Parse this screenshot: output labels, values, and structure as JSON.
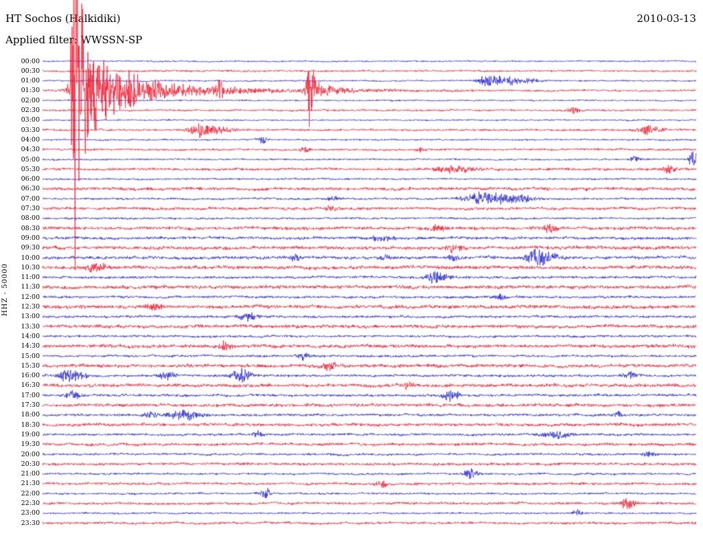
{
  "header": {
    "station_title": "HT Sochos (Halkidiki)",
    "date": "2010-03-13",
    "filter_label": "Applied filter: WWSSN-SP"
  },
  "y_axis_label": "HHZ - 50000",
  "colors": {
    "red": "#ed1b2f",
    "blue": "#2323cf",
    "background": "#ffffff",
    "text": "#000000"
  },
  "chart_data": {
    "type": "line",
    "subtype": "helicorder-seismogram",
    "station": "HT Sochos (Halkidiki)",
    "channel_gain": "HHZ - 50000",
    "date": "2010-03-13",
    "filter": "WWSSN-SP",
    "row_interval_minutes": 30,
    "rows_start": "00:00",
    "rows_end": "23:30",
    "notable_events": [
      {
        "trace": "01:30",
        "approx_time": "01:31",
        "description": "large local earthquake; amplitude saturates full plot height leaving a vertical red stripe across all traces"
      },
      {
        "trace": "01:30",
        "approx_time": "01:42",
        "description": "second large spike (aftershock)"
      },
      {
        "trace": "01:00",
        "approx_time": "01:20",
        "description": "moderate blue burst"
      },
      {
        "trace": "05:00",
        "approx_time": "05:29",
        "description": "burst clipped at right edge"
      }
    ],
    "rows": [
      {
        "time": "00:00",
        "color": "blue",
        "noise": 1.1,
        "events": []
      },
      {
        "time": "00:30",
        "color": "red",
        "noise": 1.4,
        "events": []
      },
      {
        "time": "01:00",
        "color": "blue",
        "noise": 1.1,
        "events": [
          {
            "p": 0.686,
            "a": 8,
            "w": 14
          },
          {
            "p": 0.715,
            "a": 5,
            "w": 10
          },
          {
            "p": 0.745,
            "a": 3,
            "w": 12
          }
        ]
      },
      {
        "time": "01:30",
        "color": "red",
        "noise": 1.4,
        "events": [
          {
            "p": 0.048,
            "a": 680,
            "r": 2,
            "d": 6
          },
          {
            "p": 0.052,
            "a": 75,
            "r": 4,
            "d": 55
          },
          {
            "p": 0.08,
            "a": 10,
            "r": 15,
            "d": 150
          },
          {
            "p": 0.271,
            "a": 11,
            "w": 4
          },
          {
            "p": 0.4065,
            "a": 72,
            "r": 2,
            "d": 4
          },
          {
            "p": 0.412,
            "a": 16,
            "r": 3,
            "d": 25
          }
        ]
      },
      {
        "time": "02:00",
        "color": "blue",
        "noise": 1.1,
        "events": []
      },
      {
        "time": "02:30",
        "color": "red",
        "noise": 1.4,
        "events": [
          {
            "p": 0.812,
            "a": 6,
            "w": 5
          }
        ]
      },
      {
        "time": "03:00",
        "color": "blue",
        "noise": 1.1,
        "events": []
      },
      {
        "time": "03:30",
        "color": "red",
        "noise": 1.5,
        "events": [
          {
            "p": 0.24,
            "a": 9,
            "w": 10
          },
          {
            "p": 0.268,
            "a": 4,
            "w": 18
          },
          {
            "p": 0.928,
            "a": 6,
            "w": 12
          }
        ]
      },
      {
        "time": "04:00",
        "color": "blue",
        "noise": 1.2,
        "events": [
          {
            "p": 0.336,
            "a": 6,
            "w": 5
          }
        ]
      },
      {
        "time": "04:30",
        "color": "red",
        "noise": 1.5,
        "events": [
          {
            "p": 0.402,
            "a": 4,
            "w": 5
          },
          {
            "p": 0.58,
            "a": 4,
            "w": 5
          }
        ]
      },
      {
        "time": "05:00",
        "color": "blue",
        "noise": 1.2,
        "events": [
          {
            "p": 0.905,
            "a": 4,
            "w": 6
          },
          {
            "p": 0.997,
            "a": 14,
            "w": 5
          }
        ]
      },
      {
        "time": "05:30",
        "color": "red",
        "noise": 1.8,
        "events": [
          {
            "p": 0.63,
            "a": 5,
            "w": 18
          },
          {
            "p": 0.959,
            "a": 6,
            "w": 6
          }
        ]
      },
      {
        "time": "06:00",
        "color": "blue",
        "noise": 1.3,
        "events": []
      },
      {
        "time": "06:30",
        "color": "red",
        "noise": 2.2,
        "events": []
      },
      {
        "time": "07:00",
        "color": "blue",
        "noise": 1.5,
        "events": [
          {
            "p": 0.445,
            "a": 4,
            "w": 5
          },
          {
            "p": 0.67,
            "a": 9,
            "w": 16
          },
          {
            "p": 0.705,
            "a": 6,
            "w": 10
          },
          {
            "p": 0.735,
            "a": 5,
            "w": 14
          }
        ]
      },
      {
        "time": "07:30",
        "color": "red",
        "noise": 2.0,
        "events": [
          {
            "p": 0.44,
            "a": 4,
            "w": 6
          }
        ]
      },
      {
        "time": "08:00",
        "color": "blue",
        "noise": 1.5,
        "events": []
      },
      {
        "time": "08:30",
        "color": "red",
        "noise": 2.2,
        "events": [
          {
            "p": 0.605,
            "a": 5,
            "w": 10
          },
          {
            "p": 0.775,
            "a": 6,
            "w": 8
          }
        ]
      },
      {
        "time": "09:00",
        "color": "blue",
        "noise": 2.0,
        "events": [
          {
            "p": 0.52,
            "a": 4,
            "w": 10
          }
        ]
      },
      {
        "time": "09:30",
        "color": "red",
        "noise": 2.5,
        "events": [
          {
            "p": 0.63,
            "a": 5,
            "w": 8
          }
        ]
      },
      {
        "time": "10:00",
        "color": "blue",
        "noise": 2.2,
        "events": [
          {
            "p": 0.385,
            "a": 5,
            "w": 6
          },
          {
            "p": 0.525,
            "a": 4,
            "w": 6
          },
          {
            "p": 0.63,
            "a": 4,
            "w": 5
          },
          {
            "p": 0.755,
            "a": 12,
            "w": 8
          },
          {
            "p": 0.775,
            "a": 6,
            "w": 12
          }
        ]
      },
      {
        "time": "10:30",
        "color": "red",
        "noise": 2.5,
        "events": [
          {
            "p": 0.082,
            "a": 6,
            "w": 10
          }
        ]
      },
      {
        "time": "11:00",
        "color": "blue",
        "noise": 1.8,
        "events": [
          {
            "p": 0.598,
            "a": 10,
            "w": 6
          },
          {
            "p": 0.612,
            "a": 4,
            "w": 10
          }
        ]
      },
      {
        "time": "11:30",
        "color": "red",
        "noise": 2.5,
        "events": []
      },
      {
        "time": "12:00",
        "color": "blue",
        "noise": 1.8,
        "events": [
          {
            "p": 0.7,
            "a": 4,
            "w": 6
          }
        ]
      },
      {
        "time": "12:30",
        "color": "red",
        "noise": 2.5,
        "events": [
          {
            "p": 0.171,
            "a": 5,
            "w": 8
          }
        ]
      },
      {
        "time": "13:00",
        "color": "blue",
        "noise": 1.8,
        "events": [
          {
            "p": 0.315,
            "a": 6,
            "w": 8
          }
        ]
      },
      {
        "time": "13:30",
        "color": "red",
        "noise": 2.4,
        "events": []
      },
      {
        "time": "14:00",
        "color": "blue",
        "noise": 1.7,
        "events": []
      },
      {
        "time": "14:30",
        "color": "red",
        "noise": 2.4,
        "events": [
          {
            "p": 0.28,
            "a": 7,
            "w": 7
          }
        ]
      },
      {
        "time": "15:00",
        "color": "blue",
        "noise": 1.7,
        "events": [
          {
            "p": 0.4,
            "a": 5,
            "w": 6
          }
        ]
      },
      {
        "time": "15:30",
        "color": "red",
        "noise": 2.4,
        "events": [
          {
            "p": 0.44,
            "a": 6,
            "w": 8
          }
        ]
      },
      {
        "time": "16:00",
        "color": "blue",
        "noise": 1.8,
        "events": [
          {
            "p": 0.043,
            "a": 10,
            "w": 12
          },
          {
            "p": 0.19,
            "a": 6,
            "w": 8
          },
          {
            "p": 0.305,
            "a": 10,
            "w": 9
          },
          {
            "p": 0.9,
            "a": 5,
            "w": 6
          }
        ]
      },
      {
        "time": "16:30",
        "color": "red",
        "noise": 2.4,
        "events": [
          {
            "p": 0.56,
            "a": 5,
            "w": 6
          }
        ]
      },
      {
        "time": "17:00",
        "color": "blue",
        "noise": 1.8,
        "events": [
          {
            "p": 0.045,
            "a": 6,
            "w": 8
          },
          {
            "p": 0.625,
            "a": 8,
            "w": 8
          }
        ]
      },
      {
        "time": "17:30",
        "color": "red",
        "noise": 2.3,
        "events": []
      },
      {
        "time": "18:00",
        "color": "blue",
        "noise": 1.8,
        "events": [
          {
            "p": 0.165,
            "a": 5,
            "w": 6
          },
          {
            "p": 0.215,
            "a": 8,
            "w": 14
          },
          {
            "p": 0.88,
            "a": 4,
            "w": 6
          }
        ]
      },
      {
        "time": "18:30",
        "color": "red",
        "noise": 2.2,
        "events": []
      },
      {
        "time": "19:00",
        "color": "blue",
        "noise": 1.7,
        "events": [
          {
            "p": 0.33,
            "a": 4,
            "w": 6
          },
          {
            "p": 0.79,
            "a": 5,
            "w": 14
          }
        ]
      },
      {
        "time": "19:30",
        "color": "red",
        "noise": 2.0,
        "events": []
      },
      {
        "time": "20:00",
        "color": "blue",
        "noise": 1.6,
        "events": [
          {
            "p": 0.93,
            "a": 5,
            "w": 6
          }
        ]
      },
      {
        "time": "20:30",
        "color": "red",
        "noise": 1.9,
        "events": []
      },
      {
        "time": "21:00",
        "color": "blue",
        "noise": 1.5,
        "events": [
          {
            "p": 0.655,
            "a": 7,
            "w": 7
          }
        ]
      },
      {
        "time": "21:30",
        "color": "red",
        "noise": 1.8,
        "events": [
          {
            "p": 0.52,
            "a": 4,
            "w": 6
          }
        ]
      },
      {
        "time": "22:00",
        "color": "blue",
        "noise": 1.4,
        "events": [
          {
            "p": 0.34,
            "a": 8,
            "w": 5
          }
        ]
      },
      {
        "time": "22:30",
        "color": "red",
        "noise": 1.8,
        "events": [
          {
            "p": 0.895,
            "a": 7,
            "w": 8
          }
        ]
      },
      {
        "time": "23:00",
        "color": "blue",
        "noise": 1.3,
        "events": [
          {
            "p": 0.82,
            "a": 4,
            "w": 6
          }
        ]
      },
      {
        "time": "23:30",
        "color": "red",
        "noise": 1.7,
        "events": []
      }
    ]
  }
}
